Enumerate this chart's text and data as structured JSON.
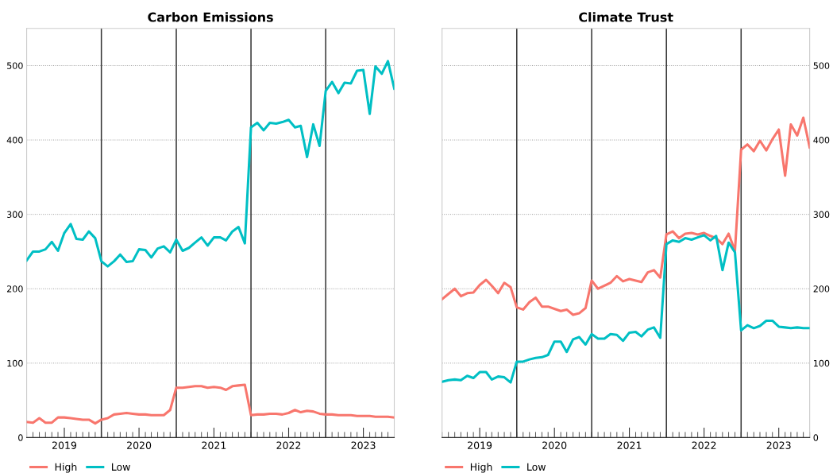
{
  "chart_data": [
    {
      "type": "line",
      "title": "Carbon Emissions",
      "x": [
        "2018-07",
        "2018-08",
        "2018-09",
        "2018-10",
        "2018-11",
        "2018-12",
        "2019-01",
        "2019-02",
        "2019-03",
        "2019-04",
        "2019-05",
        "2019-06",
        "2019-07",
        "2019-08",
        "2019-09",
        "2019-10",
        "2019-11",
        "2019-12",
        "2020-01",
        "2020-02",
        "2020-03",
        "2020-04",
        "2020-05",
        "2020-06",
        "2020-07",
        "2020-08",
        "2020-09",
        "2020-10",
        "2020-11",
        "2020-12",
        "2021-01",
        "2021-02",
        "2021-03",
        "2021-04",
        "2021-05",
        "2021-06",
        "2021-07",
        "2021-08",
        "2021-09",
        "2021-10",
        "2021-11",
        "2021-12",
        "2022-01",
        "2022-02",
        "2022-03",
        "2022-04",
        "2022-05",
        "2022-06",
        "2022-07",
        "2022-08",
        "2022-09",
        "2022-10",
        "2022-11",
        "2022-12",
        "2023-01",
        "2023-02",
        "2023-03",
        "2023-04",
        "2023-05",
        "2023-06"
      ],
      "series": [
        {
          "name": "High",
          "color": "#f8766d",
          "values": [
            21,
            20,
            26,
            20,
            20,
            27,
            27,
            26,
            25,
            24,
            24,
            19,
            24,
            26,
            31,
            32,
            33,
            32,
            31,
            31,
            30,
            30,
            30,
            37,
            67,
            67,
            68,
            69,
            69,
            67,
            68,
            67,
            64,
            69,
            70,
            71,
            30,
            31,
            31,
            32,
            32,
            31,
            33,
            37,
            34,
            36,
            35,
            32,
            31,
            31,
            30,
            30,
            30,
            29,
            29,
            29,
            28,
            28,
            28,
            27
          ]
        },
        {
          "name": "Low",
          "color": "#00bfc4",
          "values": [
            238,
            250,
            250,
            253,
            263,
            251,
            275,
            287,
            267,
            266,
            277,
            268,
            237,
            230,
            237,
            246,
            236,
            237,
            253,
            252,
            242,
            254,
            257,
            249,
            266,
            251,
            255,
            262,
            269,
            258,
            269,
            269,
            265,
            277,
            283,
            261,
            417,
            423,
            413,
            423,
            422,
            424,
            427,
            417,
            419,
            377,
            421,
            392,
            466,
            478,
            463,
            477,
            476,
            493,
            494,
            435,
            499,
            489,
            506,
            469
          ]
        }
      ],
      "xlim": [
        "2018-07",
        "2023-06"
      ],
      "xticks": [
        {
          "value": "2019-01",
          "label": "2019"
        },
        {
          "value": "2020-01",
          "label": "2020"
        },
        {
          "value": "2021-01",
          "label": "2021"
        },
        {
          "value": "2022-01",
          "label": "2022"
        },
        {
          "value": "2023-01",
          "label": "2023"
        }
      ],
      "ylim": [
        0,
        550
      ],
      "yticks": [
        0,
        100,
        200,
        300,
        400,
        500
      ],
      "ref_lines": [
        {
          "axis": "x",
          "value": "2019-07",
          "color": "#333333"
        },
        {
          "axis": "x",
          "value": "2020-07",
          "color": "#333333"
        },
        {
          "axis": "x",
          "value": "2021-07",
          "color": "#333333"
        },
        {
          "axis": "x",
          "value": "2022-07",
          "color": "#333333"
        }
      ],
      "grid": "y",
      "legend": "bottom left",
      "marker": "none",
      "line_style": "solid"
    },
    {
      "type": "line",
      "title": "Climate Trust",
      "x": [
        "2018-07",
        "2018-08",
        "2018-09",
        "2018-10",
        "2018-11",
        "2018-12",
        "2019-01",
        "2019-02",
        "2019-03",
        "2019-04",
        "2019-05",
        "2019-06",
        "2019-07",
        "2019-08",
        "2019-09",
        "2019-10",
        "2019-11",
        "2019-12",
        "2020-01",
        "2020-02",
        "2020-03",
        "2020-04",
        "2020-05",
        "2020-06",
        "2020-07",
        "2020-08",
        "2020-09",
        "2020-10",
        "2020-11",
        "2020-12",
        "2021-01",
        "2021-02",
        "2021-03",
        "2021-04",
        "2021-05",
        "2021-06",
        "2021-07",
        "2021-08",
        "2021-09",
        "2021-10",
        "2021-11",
        "2021-12",
        "2022-01",
        "2022-02",
        "2022-03",
        "2022-04",
        "2022-05",
        "2022-06",
        "2022-07",
        "2022-08",
        "2022-09",
        "2022-10",
        "2022-11",
        "2022-12",
        "2023-01",
        "2023-02",
        "2023-03",
        "2023-04",
        "2023-05",
        "2023-06"
      ],
      "series": [
        {
          "name": "High",
          "color": "#f8766d",
          "values": [
            186,
            193,
            200,
            190,
            194,
            195,
            205,
            212,
            204,
            194,
            208,
            202,
            175,
            172,
            182,
            188,
            176,
            176,
            173,
            170,
            172,
            165,
            167,
            174,
            211,
            200,
            204,
            208,
            217,
            210,
            213,
            211,
            209,
            222,
            225,
            215,
            273,
            277,
            268,
            274,
            275,
            273,
            275,
            271,
            268,
            260,
            274,
            251,
            387,
            394,
            385,
            399,
            386,
            401,
            414,
            352,
            421,
            406,
            430,
            390
          ]
        },
        {
          "name": "Low",
          "color": "#00bfc4",
          "values": [
            75,
            77,
            78,
            77,
            83,
            80,
            88,
            88,
            78,
            82,
            81,
            74,
            102,
            102,
            105,
            107,
            108,
            111,
            129,
            129,
            115,
            132,
            135,
            125,
            139,
            133,
            133,
            139,
            138,
            130,
            141,
            142,
            136,
            145,
            148,
            134,
            260,
            265,
            263,
            268,
            266,
            269,
            272,
            265,
            271,
            225,
            262,
            249,
            144,
            151,
            147,
            150,
            157,
            157,
            149,
            148,
            147,
            148,
            147,
            147
          ]
        }
      ],
      "xlim": [
        "2018-07",
        "2023-06"
      ],
      "xticks": [
        {
          "value": "2019-01",
          "label": "2019"
        },
        {
          "value": "2020-01",
          "label": "2020"
        },
        {
          "value": "2021-01",
          "label": "2021"
        },
        {
          "value": "2022-01",
          "label": "2022"
        },
        {
          "value": "2023-01",
          "label": "2023"
        }
      ],
      "ylim": [
        0,
        550
      ],
      "yticks": [
        0,
        100,
        200,
        300,
        400,
        500
      ],
      "ref_lines": [
        {
          "axis": "x",
          "value": "2019-07",
          "color": "#333333"
        },
        {
          "axis": "x",
          "value": "2020-07",
          "color": "#333333"
        },
        {
          "axis": "x",
          "value": "2021-07",
          "color": "#333333"
        },
        {
          "axis": "x",
          "value": "2022-07",
          "color": "#333333"
        }
      ],
      "grid": "y",
      "legend": "bottom left",
      "marker": "none",
      "line_style": "solid"
    }
  ]
}
